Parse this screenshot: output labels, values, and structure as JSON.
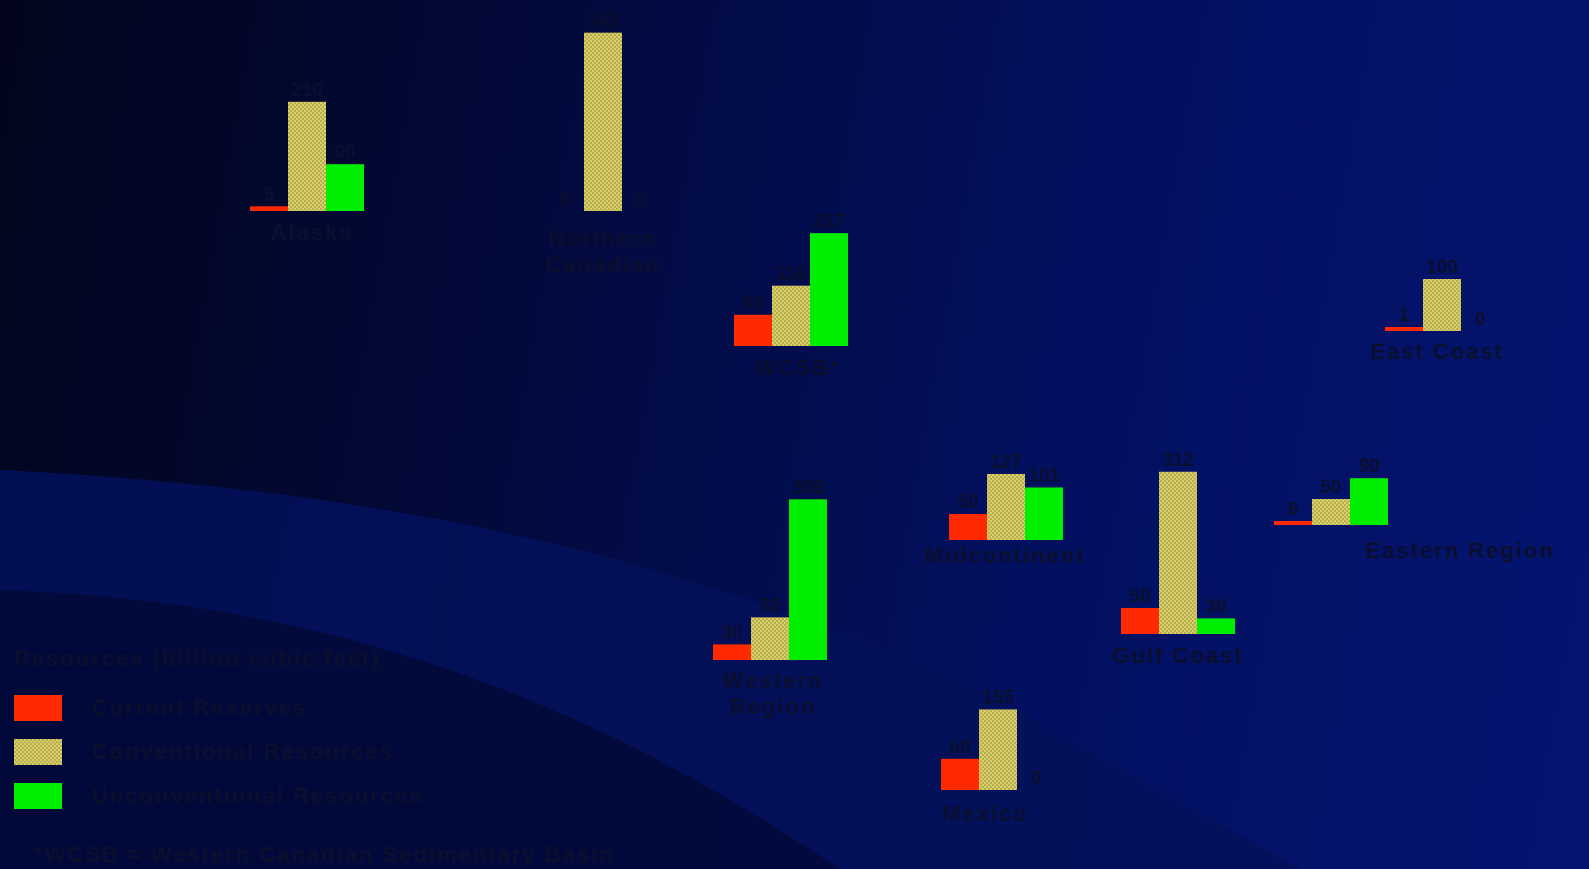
{
  "colors": {
    "current": "#ff2a00",
    "conventional": "#d8cf6e",
    "unconventional": "#00ee00",
    "label": "#0a0f2e"
  },
  "legend": {
    "title": "Resources (billion cubic feet)",
    "items": [
      {
        "label": "Current Reserves",
        "color": "#ff2a00"
      },
      {
        "label": "Conventional Resources",
        "color": "#d8cf6e"
      },
      {
        "label": "Unconventional Resources",
        "color": "#00ee00"
      }
    ]
  },
  "footnote": "*WCSB = Western Canadian Sedimentary Basin",
  "chart_data": {
    "type": "bar",
    "series_names": [
      "Current Reserves",
      "Conventional Resources",
      "Unconventional Resources"
    ],
    "groups": [
      {
        "region": "Alaska",
        "current": 9,
        "conventional": 210,
        "unconventional": 90
      },
      {
        "region": "Northern Canadian",
        "current": 0,
        "conventional": 343,
        "unconventional": 0
      },
      {
        "region": "WCSB*",
        "current": 60,
        "conventional": 116,
        "unconventional": 217
      },
      {
        "region": "Western Region",
        "current": 30,
        "conventional": 82,
        "unconventional": 309
      },
      {
        "region": "Midcontinent",
        "current": 50,
        "conventional": 127,
        "unconventional": 101
      },
      {
        "region": "Gulf Coast",
        "current": 50,
        "conventional": 312,
        "unconventional": 30
      },
      {
        "region": "East Coast",
        "current": 1,
        "conventional": 100,
        "unconventional": 0
      },
      {
        "region": "Eastern Region",
        "current": 6,
        "conventional": 50,
        "unconventional": 90
      },
      {
        "region": "Mexico",
        "current": 60,
        "conventional": 155,
        "unconventional": 0
      }
    ]
  }
}
